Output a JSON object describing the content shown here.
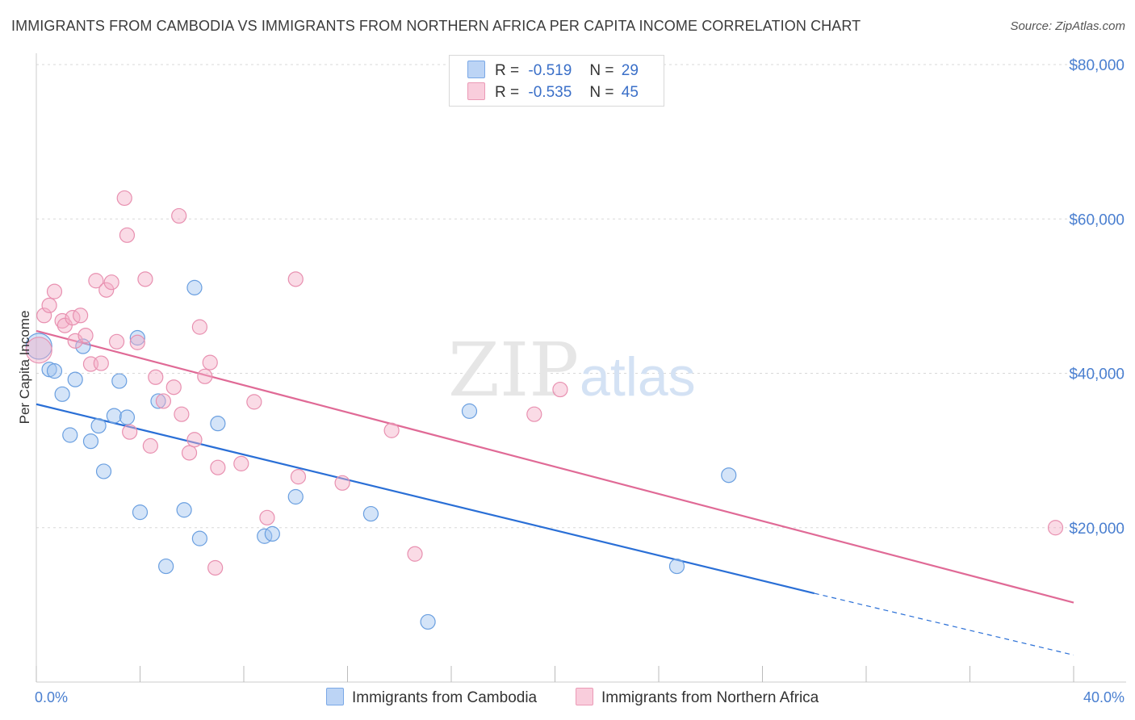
{
  "title": "IMMIGRANTS FROM CAMBODIA VS IMMIGRANTS FROM NORTHERN AFRICA PER CAPITA INCOME CORRELATION CHART",
  "source": "Source: ZipAtlas.com",
  "watermark": {
    "zip": "ZIP",
    "atlas": "atlas"
  },
  "legend": [
    {
      "r_label": "R =",
      "r_value": "-0.519",
      "n_label": "N =",
      "n_value": "29",
      "color": "#a9c8f0"
    },
    {
      "r_label": "R =",
      "r_value": "-0.535",
      "n_label": "N =",
      "n_value": "45",
      "color": "#f7bcd0"
    }
  ],
  "chart_data": {
    "type": "scatter",
    "title": "IMMIGRANTS FROM CAMBODIA VS IMMIGRANTS FROM NORTHERN AFRICA PER CAPITA INCOME CORRELATION CHART",
    "xlabel": "",
    "ylabel": "Per Capita Income",
    "xlim": [
      0,
      40
    ],
    "ylim": [
      0,
      80000
    ],
    "x_tick_labels": [
      "0.0%",
      "40.0%"
    ],
    "y_tick_labels": [
      "$20,000",
      "$40,000",
      "$60,000",
      "$80,000"
    ],
    "y_tick_values": [
      20000,
      40000,
      60000,
      80000
    ],
    "series": [
      {
        "name": "Immigrants from Cambodia",
        "color": "#6a9fe0",
        "line_color": "#2a6fd6",
        "trend": {
          "x0": 0,
          "y0": 36000,
          "x1": 30,
          "y1": 11500,
          "dash_to_x": 40,
          "dash_to_y": 3500
        },
        "points": [
          [
            0.1,
            43500
          ],
          [
            0.5,
            40500
          ],
          [
            0.7,
            40300
          ],
          [
            1.0,
            37300
          ],
          [
            1.3,
            32000
          ],
          [
            1.5,
            39200
          ],
          [
            1.8,
            43500
          ],
          [
            2.1,
            31200
          ],
          [
            2.4,
            33200
          ],
          [
            2.6,
            27300
          ],
          [
            3.0,
            34500
          ],
          [
            3.2,
            39000
          ],
          [
            3.5,
            34300
          ],
          [
            3.9,
            44600
          ],
          [
            4.0,
            22000
          ],
          [
            4.7,
            36400
          ],
          [
            5.0,
            15000
          ],
          [
            5.7,
            22300
          ],
          [
            6.3,
            18600
          ],
          [
            6.1,
            51100
          ],
          [
            7.0,
            33500
          ],
          [
            8.8,
            18900
          ],
          [
            9.1,
            19200
          ],
          [
            10.0,
            24000
          ],
          [
            12.9,
            21800
          ],
          [
            15.1,
            7800
          ],
          [
            16.7,
            35100
          ],
          [
            24.7,
            15000
          ],
          [
            26.7,
            26800
          ]
        ]
      },
      {
        "name": "Immigrants from Northern Africa",
        "color": "#e890b0",
        "line_color": "#e06a96",
        "trend": {
          "x0": 0,
          "y0": 45500,
          "x1": 40,
          "y1": 10300
        },
        "points": [
          [
            0.1,
            43000
          ],
          [
            0.3,
            47500
          ],
          [
            0.5,
            48800
          ],
          [
            0.7,
            50600
          ],
          [
            1.0,
            46800
          ],
          [
            1.1,
            46200
          ],
          [
            1.4,
            47200
          ],
          [
            1.5,
            44200
          ],
          [
            1.7,
            47500
          ],
          [
            1.9,
            44900
          ],
          [
            2.1,
            41200
          ],
          [
            2.3,
            52000
          ],
          [
            2.5,
            41300
          ],
          [
            2.7,
            50800
          ],
          [
            2.9,
            51800
          ],
          [
            3.1,
            44100
          ],
          [
            3.4,
            62700
          ],
          [
            3.5,
            57900
          ],
          [
            3.6,
            32400
          ],
          [
            3.9,
            44000
          ],
          [
            4.2,
            52200
          ],
          [
            4.4,
            30600
          ],
          [
            4.6,
            39500
          ],
          [
            4.9,
            36400
          ],
          [
            5.3,
            38200
          ],
          [
            5.5,
            60400
          ],
          [
            5.6,
            34700
          ],
          [
            5.9,
            29700
          ],
          [
            6.1,
            31400
          ],
          [
            6.3,
            46000
          ],
          [
            6.5,
            39600
          ],
          [
            6.7,
            41400
          ],
          [
            6.9,
            14800
          ],
          [
            7.0,
            27800
          ],
          [
            7.9,
            28300
          ],
          [
            8.4,
            36300
          ],
          [
            8.9,
            21300
          ],
          [
            10.0,
            52200
          ],
          [
            10.1,
            26600
          ],
          [
            11.8,
            25800
          ],
          [
            13.7,
            32600
          ],
          [
            14.6,
            16600
          ],
          [
            19.2,
            34700
          ],
          [
            20.2,
            37900
          ],
          [
            39.3,
            20000
          ]
        ]
      }
    ]
  }
}
